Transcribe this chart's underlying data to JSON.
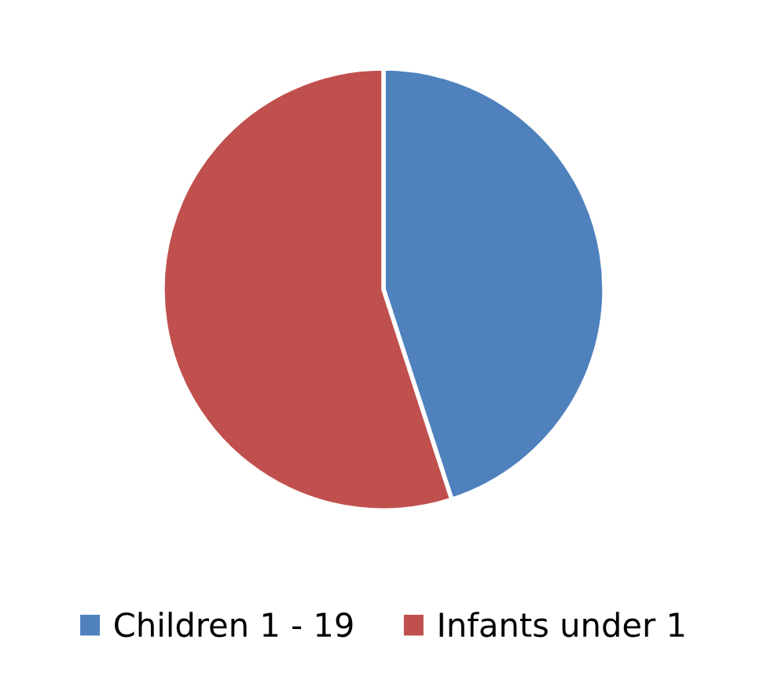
{
  "chart_data": {
    "type": "pie",
    "categories": [
      "Children 1 - 19",
      "Infants under 1"
    ],
    "values": [
      45,
      55
    ],
    "colors": [
      "#4f81bd",
      "#c0504d"
    ],
    "legend": "bottom"
  }
}
